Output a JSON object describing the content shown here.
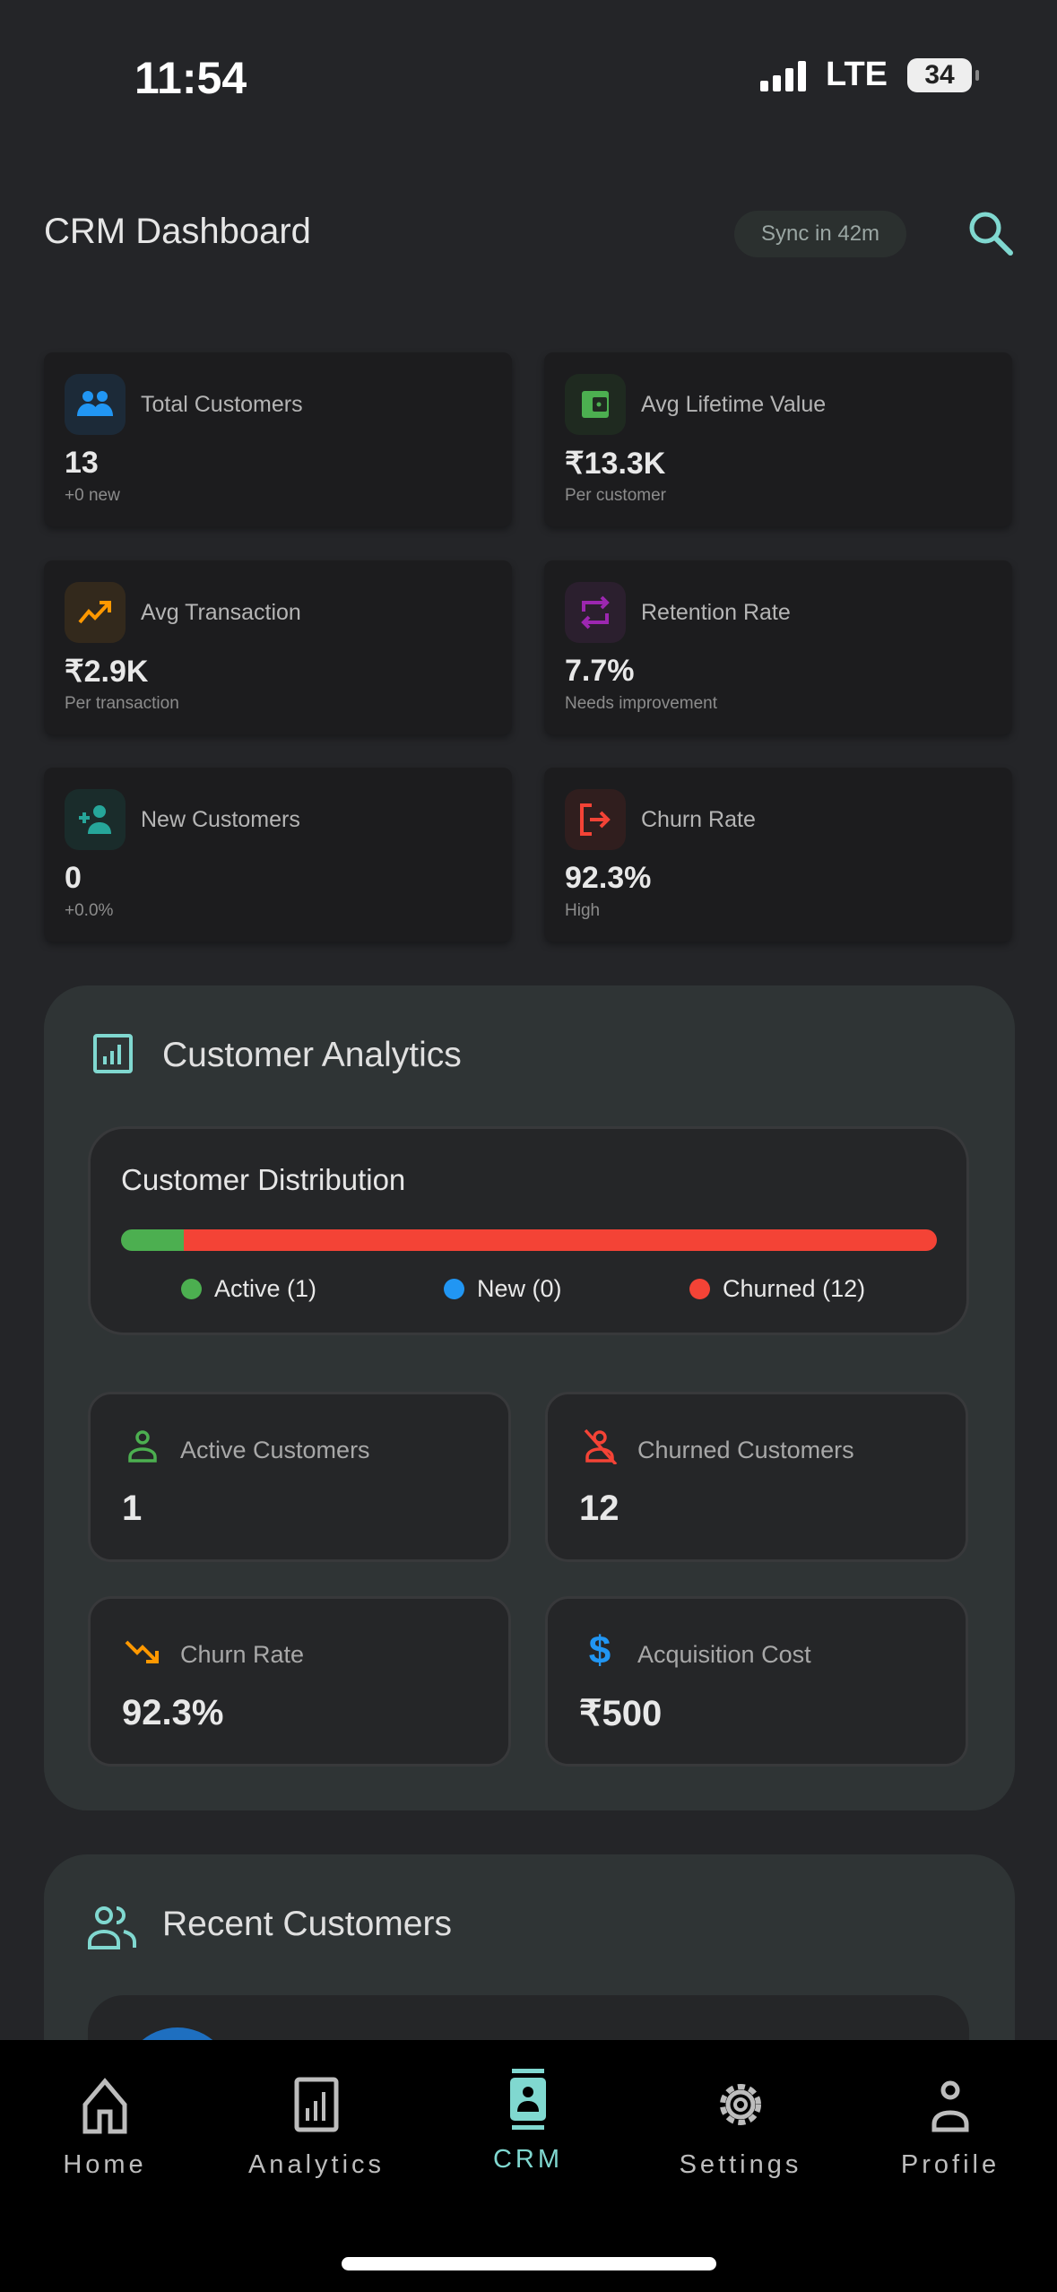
{
  "status_bar": {
    "time": "11:54",
    "network": "LTE",
    "battery": "34"
  },
  "header": {
    "title": "CRM Dashboard",
    "sync": "Sync in 42m",
    "search_icon": "search-icon"
  },
  "colors": {
    "accent": "#80d8d0",
    "green": "#4caf50",
    "blue": "#2196f3",
    "red": "#f44336",
    "orange": "#ff9800",
    "purple": "#9c27b0",
    "teal": "#26a69a"
  },
  "stats": [
    {
      "label": "Total Customers",
      "value": "13",
      "sub": "+0 new",
      "icon": "people-icon"
    },
    {
      "label": "Avg Lifetime Value",
      "value": "₹13.3K",
      "sub": "Per customer",
      "icon": "wallet-icon"
    },
    {
      "label": "Avg Transaction",
      "value": "₹2.9K",
      "sub": "Per transaction",
      "icon": "trending-up-icon"
    },
    {
      "label": "Retention Rate",
      "value": "7.7%",
      "sub": "Needs improvement",
      "icon": "repeat-icon"
    },
    {
      "label": "New Customers",
      "value": "0",
      "sub": "+0.0%",
      "icon": "person-add-icon"
    },
    {
      "label": "Churn Rate",
      "value": "92.3%",
      "sub": "High",
      "icon": "logout-icon"
    }
  ],
  "analytics": {
    "title": "Customer Analytics",
    "distribution": {
      "title": "Customer Distribution",
      "active_fraction": 0.077,
      "new_fraction": 0.0,
      "churned_fraction": 0.923,
      "legend": [
        "Active (1)",
        "New (0)",
        "Churned (12)"
      ]
    },
    "metrics": [
      {
        "label": "Active Customers",
        "value": "1",
        "icon": "person-icon"
      },
      {
        "label": "Churned Customers",
        "value": "12",
        "icon": "person-off-icon"
      },
      {
        "label": "Churn Rate",
        "value": "92.3%",
        "icon": "trending-down-icon"
      },
      {
        "label": "Acquisition Cost",
        "value": "₹500",
        "icon": "dollar-icon"
      }
    ]
  },
  "recent": {
    "title": "Recent Customers"
  },
  "tabs": [
    {
      "label": "Home",
      "active": false
    },
    {
      "label": "Analytics",
      "active": false
    },
    {
      "label": "CRM",
      "active": true
    },
    {
      "label": "Settings",
      "active": false
    },
    {
      "label": "Profile",
      "active": false
    }
  ]
}
